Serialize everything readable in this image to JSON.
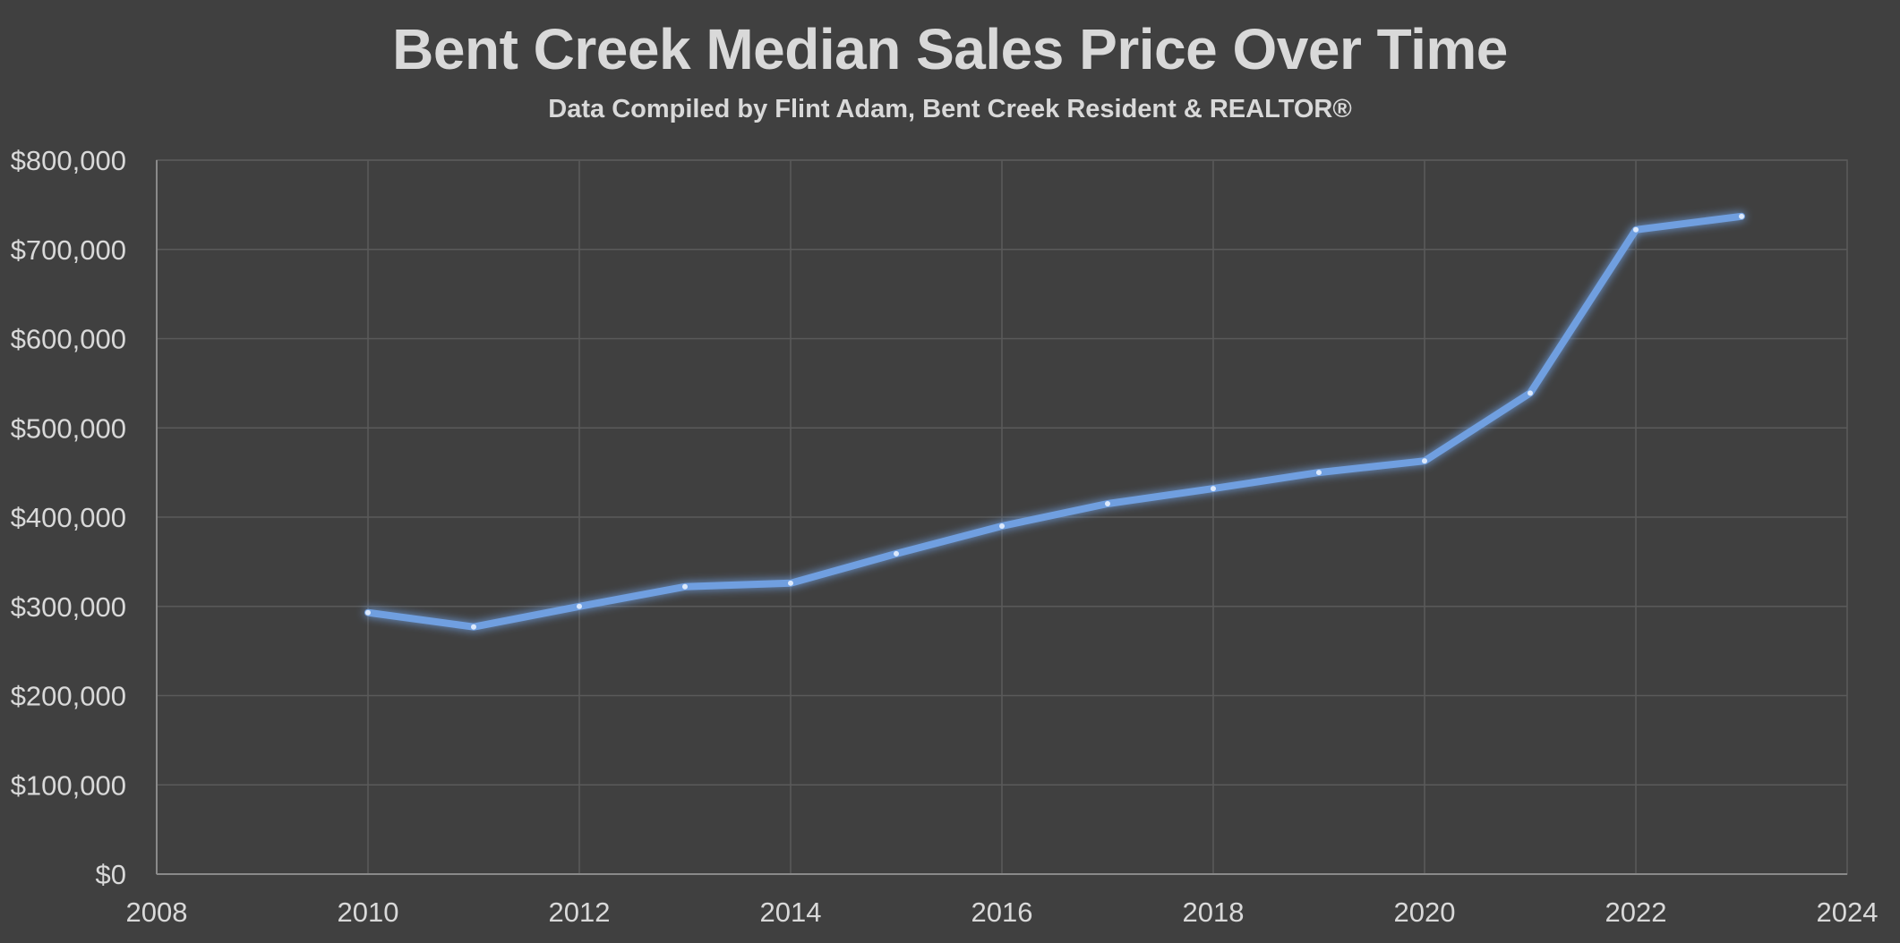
{
  "chart_data": {
    "type": "line",
    "title": "Bent Creek Median Sales Price Over Time",
    "subtitle": "Data Compiled by Flint Adam, Bent Creek Resident & REALTOR®",
    "xlabel": "",
    "ylabel": "",
    "xlim": [
      2008,
      2024
    ],
    "ylim": [
      0,
      800000
    ],
    "x_ticks": [
      2008,
      2010,
      2012,
      2014,
      2016,
      2018,
      2020,
      2022,
      2024
    ],
    "y_ticks": [
      0,
      100000,
      200000,
      300000,
      400000,
      500000,
      600000,
      700000,
      800000
    ],
    "y_tick_labels": [
      "$0",
      "$100,000",
      "$200,000",
      "$300,000",
      "$400,000",
      "$500,000",
      "$600,000",
      "$700,000",
      "$800,000"
    ],
    "grid": true,
    "legend": "none",
    "series": [
      {
        "color": "#6f9fe0",
        "points": [
          {
            "x": 2010,
            "y": 293000
          },
          {
            "x": 2011,
            "y": 277000
          },
          {
            "x": 2012,
            "y": 300000
          },
          {
            "x": 2013,
            "y": 322000
          },
          {
            "x": 2014,
            "y": 326000
          },
          {
            "x": 2015,
            "y": 359000
          },
          {
            "x": 2016,
            "y": 390000
          },
          {
            "x": 2017,
            "y": 415000
          },
          {
            "x": 2018,
            "y": 432000
          },
          {
            "x": 2019,
            "y": 450000
          },
          {
            "x": 2020,
            "y": 463000
          },
          {
            "x": 2021,
            "y": 539000
          },
          {
            "x": 2022,
            "y": 722000
          },
          {
            "x": 2023,
            "y": 737000
          }
        ]
      }
    ],
    "colors": {
      "background": "#404040",
      "grid": "#5a5a5a",
      "text": "#d9d9d9"
    }
  }
}
